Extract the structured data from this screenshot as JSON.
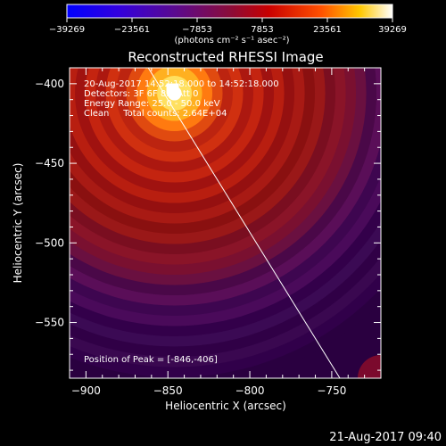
{
  "chart_data": {
    "type": "heatmap",
    "title": "Reconstructed RHESSI Image",
    "xlabel": "Heliocentric X (arcsec)",
    "ylabel": "Heliocentric Y (arcsec)",
    "xlim": [
      -910,
      -720
    ],
    "ylim": [
      -585,
      -390
    ],
    "x_ticks": [
      -900,
      -850,
      -800,
      -750
    ],
    "x_tick_labels": [
      "−900",
      "−850",
      "−800",
      "−750"
    ],
    "y_ticks": [
      -400,
      -450,
      -500,
      -550
    ],
    "y_tick_labels": [
      "−400",
      "−450",
      "−500",
      "−550"
    ],
    "colorbar": {
      "min": -39269,
      "max": 39269,
      "ticks": [
        -39269,
        -23561,
        -7853,
        7853,
        23561,
        39269
      ],
      "tick_labels": [
        "−39269",
        "−23561",
        "−7853",
        "7853",
        "23561",
        "39269"
      ],
      "units_label": "(photons cm⁻² s⁻¹ asec⁻²)"
    },
    "peak": {
      "x": -846,
      "y": -406,
      "value": 39269
    },
    "limb_line": [
      [
        -862,
        -390
      ],
      [
        -745,
        -585
      ]
    ],
    "annotations": {
      "time_range": "20-Aug-2017 14:52:18.000 to 14:52:18.000",
      "detectors": "Detectors: 3F 6F 8F, Att 0",
      "energy_range": "Energy Range: 25.0 - 50.0 keV",
      "clean": "Clean     Total counts: 2.64E+04",
      "peak_position": "Position of Peak = [-846,-406]"
    },
    "timestamp": "21-Aug-2017 09:40"
  }
}
